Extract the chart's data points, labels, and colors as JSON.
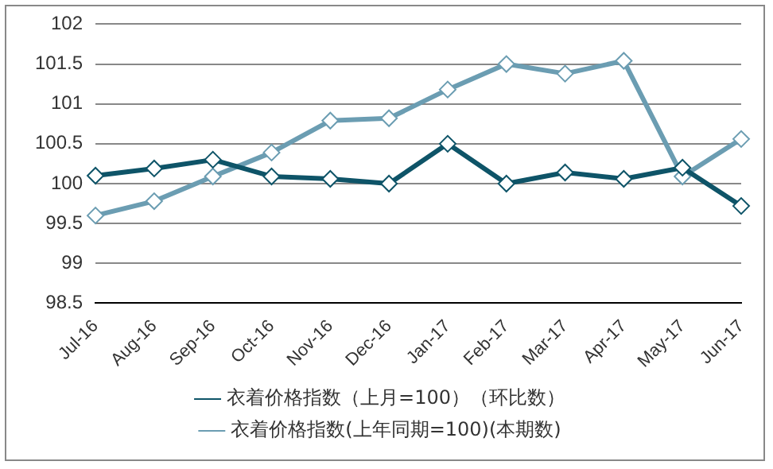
{
  "chart_data": {
    "type": "line",
    "categories": [
      "Jul-16",
      "Aug-16",
      "Sep-16",
      "Oct-16",
      "Nov-16",
      "Dec-16",
      "Jan-17",
      "Feb-17",
      "Mar-17",
      "Apr-17",
      "May-17",
      "Jun-17"
    ],
    "series": [
      {
        "name": "衣着价格指数(上年同期=100)(本期数)",
        "color": "#6b9db2",
        "values": [
          99.6,
          99.78,
          100.09,
          100.39,
          100.79,
          100.82,
          101.18,
          101.5,
          101.38,
          101.54,
          100.09,
          100.56
        ]
      },
      {
        "name": "衣着价格指数（上月=100）（环比数）",
        "color": "#0e5468",
        "values": [
          100.1,
          100.19,
          100.3,
          100.09,
          100.06,
          100.0,
          100.5,
          100.0,
          100.14,
          100.06,
          100.2,
          99.72
        ]
      }
    ],
    "ylim": [
      98.5,
      102
    ],
    "yticks": [
      98.5,
      99,
      99.5,
      100,
      100.5,
      101,
      101.5,
      102
    ],
    "grid": "y",
    "legend": "bottom",
    "marker": "diamond",
    "line_style": "solid"
  }
}
